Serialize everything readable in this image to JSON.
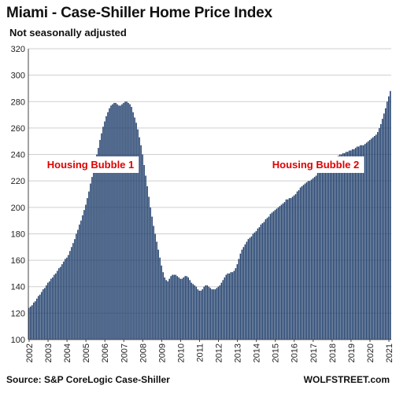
{
  "title": "Miami - Case-Shiller Home Price Index",
  "subtitle": "Not seasonally adjusted",
  "source": "Source: S&P CoreLogic Case-Shiller",
  "brand": "WOLFSTREET.com",
  "colors": {
    "bar": "#1f3e6b",
    "grid": "#cfcfcf",
    "annotation": "#e00000"
  },
  "chart_data": {
    "type": "bar",
    "title": "Miami - Case-Shiller Home Price Index",
    "subtitle": "Not seasonally adjusted",
    "ylim": [
      100,
      320
    ],
    "yticks": [
      100,
      120,
      140,
      160,
      180,
      200,
      220,
      240,
      260,
      280,
      300,
      320
    ],
    "grid": true,
    "xticks": [
      "2002",
      "2003",
      "2004",
      "2005",
      "2006",
      "2007",
      "2008",
      "2009",
      "2010",
      "2011",
      "2012",
      "2013",
      "2014",
      "2015",
      "2016",
      "2017",
      "2018",
      "2019",
      "2020",
      "2021"
    ],
    "x_start": "2002-01",
    "frequency": "monthly",
    "values": [
      124,
      125,
      126,
      128,
      129,
      131,
      133,
      134,
      136,
      138,
      139,
      141,
      143,
      144,
      146,
      147,
      149,
      150,
      152,
      154,
      155,
      157,
      159,
      161,
      162,
      164,
      167,
      170,
      173,
      176,
      180,
      183,
      187,
      190,
      194,
      198,
      202,
      207,
      212,
      218,
      223,
      229,
      234,
      240,
      245,
      251,
      256,
      261,
      265,
      269,
      272,
      275,
      277,
      278,
      279,
      279,
      278,
      277,
      277,
      278,
      279,
      280,
      280,
      279,
      278,
      276,
      272,
      268,
      264,
      259,
      253,
      247,
      240,
      232,
      224,
      216,
      208,
      200,
      193,
      186,
      180,
      174,
      168,
      162,
      156,
      151,
      147,
      145,
      144,
      146,
      148,
      149,
      149,
      149,
      148,
      147,
      146,
      146,
      147,
      148,
      148,
      147,
      145,
      143,
      142,
      141,
      140,
      138,
      137,
      137,
      138,
      140,
      141,
      141,
      140,
      139,
      138,
      138,
      138,
      139,
      140,
      141,
      143,
      145,
      147,
      149,
      150,
      150,
      151,
      151,
      152,
      154,
      157,
      161,
      165,
      168,
      170,
      172,
      174,
      176,
      177,
      178,
      180,
      181,
      182,
      184,
      185,
      187,
      188,
      189,
      191,
      192,
      193,
      195,
      196,
      197,
      198,
      199,
      200,
      201,
      202,
      203,
      204,
      206,
      206,
      207,
      207,
      208,
      209,
      210,
      212,
      213,
      215,
      216,
      217,
      218,
      219,
      220,
      220,
      221,
      222,
      223,
      224,
      226,
      227,
      228,
      229,
      230,
      231,
      232,
      233,
      234,
      235,
      236,
      237,
      238,
      239,
      240,
      240,
      241,
      241,
      242,
      242,
      243,
      243,
      244,
      244,
      245,
      246,
      246,
      247,
      247,
      247,
      248,
      249,
      250,
      251,
      252,
      253,
      254,
      255,
      257,
      260,
      263,
      267,
      271,
      275,
      280,
      284,
      288
    ],
    "annotations": [
      {
        "text": "Housing Bubble 1"
      },
      {
        "text": "Housing Bubble 2"
      }
    ]
  }
}
